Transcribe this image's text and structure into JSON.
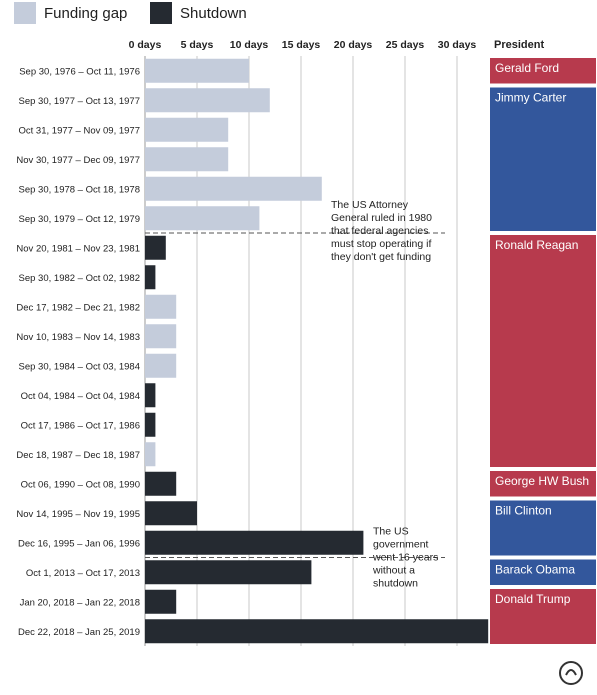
{
  "legend": [
    {
      "label": "Funding gap",
      "color": "#c4ccdb"
    },
    {
      "label": "Shutdown",
      "color": "#252a31"
    }
  ],
  "president_header": "President",
  "footer_text": "",
  "chart_data": {
    "type": "bar",
    "orientation": "horizontal",
    "xlim": [
      0,
      33
    ],
    "x_ticks": [
      0,
      5,
      10,
      15,
      20,
      25,
      30
    ],
    "x_tick_labels": [
      "0 days",
      "5 days",
      "10 days",
      "15 days",
      "20 days",
      "25 days",
      "30 days"
    ],
    "grid": true,
    "categories": [
      "Sep 30, 1976 – Oct 11, 1976",
      "Sep 30, 1977 – Oct 13, 1977",
      "Oct 31, 1977 – Nov 09, 1977",
      "Nov 30, 1977 – Dec 09, 1977",
      "Sep 30, 1978 – Oct 18, 1978",
      "Sep 30, 1979 – Oct 12, 1979",
      "Nov 20, 1981 – Nov 23, 1981",
      "Sep 30, 1982 – Oct 02, 1982",
      "Dec 17, 1982 – Dec 21, 1982",
      "Nov 10, 1983 – Nov 14, 1983",
      "Sep 30, 1984 – Oct 03, 1984",
      "Oct 04, 1984 – Oct 04, 1984",
      "Oct 17, 1986 – Oct 17, 1986",
      "Dec 18, 1987 – Dec 18, 1987",
      "Oct 06, 1990 – Oct 08, 1990",
      "Nov 14, 1995 – Nov 19, 1995",
      "Dec 16, 1995 – Jan 06, 1996",
      "Oct 1, 2013 – Oct 17, 2013",
      "Jan 20, 2018 – Jan 22, 2018",
      "Dec 22, 2018 – Jan 25, 2019"
    ],
    "values": [
      10,
      12,
      8,
      8,
      17,
      11,
      2,
      1,
      3,
      3,
      3,
      1,
      1,
      1,
      3,
      5,
      21,
      16,
      3,
      33
    ],
    "types": [
      "Funding gap",
      "Funding gap",
      "Funding gap",
      "Funding gap",
      "Funding gap",
      "Funding gap",
      "Shutdown",
      "Shutdown",
      "Funding gap",
      "Funding gap",
      "Funding gap",
      "Shutdown",
      "Shutdown",
      "Funding gap",
      "Shutdown",
      "Shutdown",
      "Shutdown",
      "Shutdown",
      "Shutdown",
      "Shutdown"
    ],
    "presidents": [
      {
        "name": "Gerald Ford",
        "start": 0,
        "end": 0,
        "color": "#b73a4d"
      },
      {
        "name": "Jimmy Carter",
        "start": 1,
        "end": 5,
        "color": "#33579c"
      },
      {
        "name": "Ronald Reagan",
        "start": 6,
        "end": 13,
        "color": "#b73a4d"
      },
      {
        "name": "George HW Bush",
        "start": 14,
        "end": 14,
        "color": "#b73a4d"
      },
      {
        "name": "Bill Clinton",
        "start": 15,
        "end": 16,
        "color": "#33579c"
      },
      {
        "name": "Barack Obama",
        "start": 17,
        "end": 17,
        "color": "#33579c"
      },
      {
        "name": "Donald Trump",
        "start": 18,
        "end": 19,
        "color": "#b73a4d"
      }
    ],
    "annotations": [
      {
        "after_row": 5,
        "lines": [
          "The US Attorney",
          "General ruled in 1980",
          "that federal agencies",
          "must stop operating if",
          "they don't get funding"
        ]
      },
      {
        "after_row": 16,
        "lines": [
          "The US",
          "government",
          "went 16 years",
          "without a",
          "shutdown"
        ]
      }
    ]
  }
}
